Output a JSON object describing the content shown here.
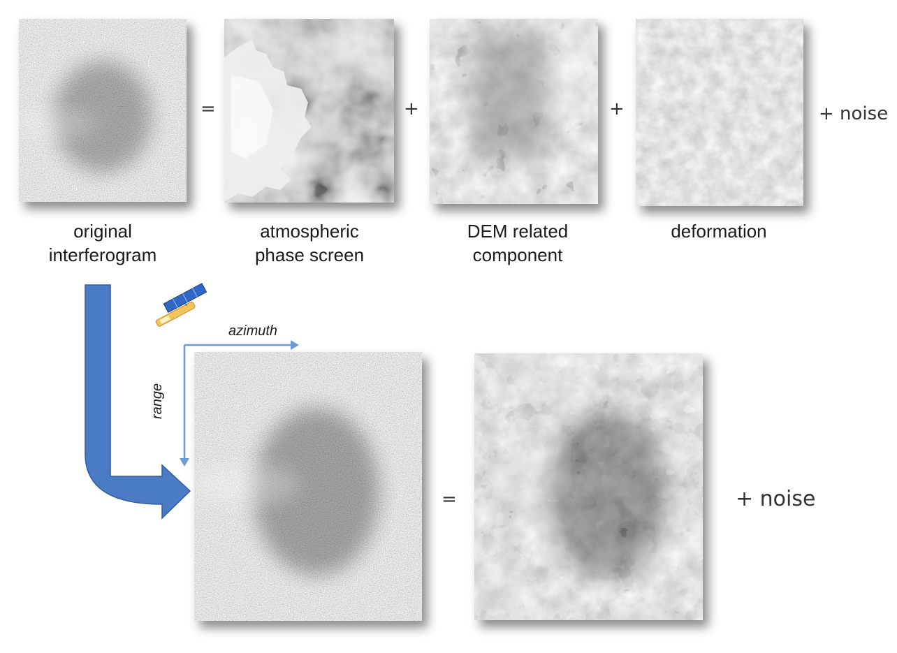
{
  "top_row": {
    "panels": [
      {
        "id": "original",
        "caption_lines": [
          "original",
          "interferogram"
        ],
        "texture": "speckle"
      },
      {
        "id": "atmos",
        "caption_lines": [
          "atmospheric",
          "phase screen"
        ],
        "texture": "cloud"
      },
      {
        "id": "dem",
        "caption_lines": [
          "DEM related",
          "component"
        ],
        "texture": "dem"
      },
      {
        "id": "deform",
        "caption_lines": [
          "deformation"
        ],
        "texture": "deform"
      }
    ],
    "operators": [
      "=",
      "+",
      "+"
    ],
    "noise_term": "+ noise"
  },
  "bottom_row": {
    "axes": {
      "azimuth": "azimuth",
      "range": "range"
    },
    "equals": "=",
    "noise_term": "+ noise"
  },
  "colors": {
    "arrow_fill": "#4a7bc4",
    "arrow_stroke": "#2f5d9e",
    "axis_line": "#6a9bd6"
  },
  "icons": {
    "satellite": "satellite-icon",
    "flow_arrow": "bent-arrow-icon"
  }
}
